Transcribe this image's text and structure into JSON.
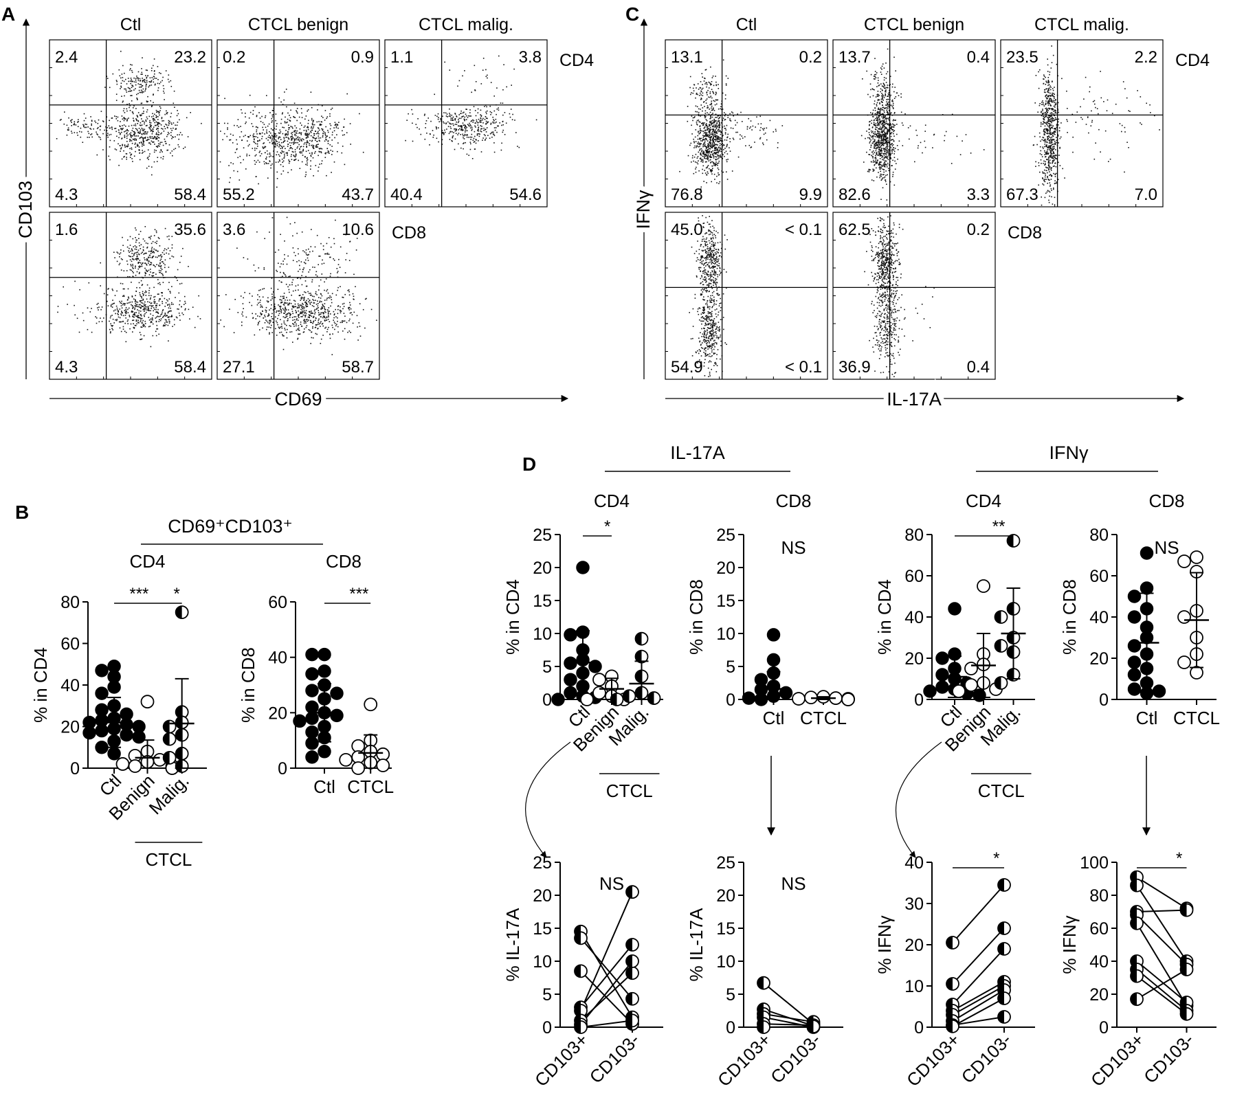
{
  "panels": {
    "A": {
      "letter": "A",
      "columns": [
        "Ctl",
        "CTCL benign",
        "CTCL malig."
      ],
      "row_labels": [
        "CD4",
        "CD8"
      ],
      "y_axis_label": "CD103",
      "x_axis_label": "CD69",
      "plots": [
        {
          "row": 0,
          "col": 0,
          "quadrants": [
            "2.4",
            "23.2",
            "4.3",
            "58.4"
          ]
        },
        {
          "row": 0,
          "col": 1,
          "quadrants": [
            "0.2",
            "0.9",
            "55.2",
            "43.7"
          ]
        },
        {
          "row": 0,
          "col": 2,
          "quadrants": [
            "1.1",
            "3.8",
            "40.4",
            "54.6"
          ]
        },
        {
          "row": 1,
          "col": 0,
          "quadrants": [
            "1.6",
            "35.6",
            "4.3",
            "58.4"
          ]
        },
        {
          "row": 1,
          "col": 1,
          "quadrants": [
            "3.6",
            "10.6",
            "27.1",
            "58.7"
          ]
        }
      ]
    },
    "C": {
      "letter": "C",
      "columns": [
        "Ctl",
        "CTCL benign",
        "CTCL malig."
      ],
      "row_labels": [
        "CD4",
        "CD8"
      ],
      "y_axis_label": "IFNγ",
      "x_axis_label": "IL-17A",
      "plots": [
        {
          "row": 0,
          "col": 0,
          "quadrants": [
            "13.1",
            "0.2",
            "76.8",
            "9.9"
          ]
        },
        {
          "row": 0,
          "col": 1,
          "quadrants": [
            "13.7",
            "0.4",
            "82.6",
            "3.3"
          ]
        },
        {
          "row": 0,
          "col": 2,
          "quadrants": [
            "23.5",
            "2.2",
            "67.3",
            "7.0"
          ]
        },
        {
          "row": 1,
          "col": 0,
          "quadrants": [
            "45.0",
            "< 0.1",
            "54.9",
            "< 0.1"
          ]
        },
        {
          "row": 1,
          "col": 1,
          "quadrants": [
            "62.5",
            "0.2",
            "36.9",
            "0.4"
          ]
        }
      ]
    },
    "B": {
      "letter": "B",
      "title": "CD69⁺CD103⁺",
      "group_label": "CTCL"
    },
    "D": {
      "letter": "D",
      "headers": [
        "IL-17A",
        "IFNγ"
      ],
      "group_label": "CTCL"
    }
  },
  "chart_data": [
    {
      "id": "B-CD4",
      "type": "scatter",
      "subtitle": "CD4",
      "ylabel": "% in CD4",
      "ylim": [
        0,
        80
      ],
      "yticks": [
        0,
        20,
        40,
        60,
        80
      ],
      "categories": [
        "Ctl",
        "Benign",
        "Malig."
      ],
      "series": [
        {
          "values": [
            49,
            47,
            44,
            39,
            36,
            30,
            28,
            26,
            24,
            23,
            22,
            21,
            20,
            19,
            18,
            17,
            16,
            15,
            13,
            10,
            7
          ],
          "mean": 22,
          "sd": 12,
          "marker": "filled"
        },
        {
          "values": [
            32,
            8,
            6,
            4,
            3,
            2,
            1,
            1,
            0,
            0
          ],
          "mean": 5,
          "sd": 8.5,
          "marker": "open"
        },
        {
          "values": [
            75,
            27,
            22,
            20,
            16,
            14,
            7,
            5,
            1
          ],
          "mean": 21.5,
          "sd": 21.5,
          "marker": "half"
        }
      ],
      "significance": [
        {
          "from": 0,
          "to": 1,
          "label": "***"
        },
        {
          "from": 1,
          "to": 2,
          "label": "*"
        }
      ]
    },
    {
      "id": "B-CD8",
      "type": "scatter",
      "subtitle": "CD8",
      "ylabel": "% in CD8",
      "ylim": [
        0,
        60
      ],
      "yticks": [
        0,
        20,
        40,
        60
      ],
      "categories": [
        "Ctl",
        "CTCL"
      ],
      "series": [
        {
          "values": [
            41,
            41,
            35,
            34,
            30,
            28,
            27,
            25,
            22,
            20,
            19,
            18,
            17,
            15,
            13,
            11,
            9,
            6,
            4
          ],
          "mean": 20,
          "sd": 10.5,
          "marker": "filled"
        },
        {
          "values": [
            23,
            10,
            8,
            6,
            5,
            4,
            3,
            2,
            1,
            0
          ],
          "mean": 5.5,
          "sd": 6.5,
          "marker": "open"
        }
      ],
      "significance": [
        {
          "from": 0,
          "to": 1,
          "label": "***"
        }
      ]
    },
    {
      "id": "D-IL17A-CD4",
      "type": "scatter",
      "subtitle": "CD4",
      "ylabel": "% in CD4",
      "ylim": [
        0,
        25
      ],
      "yticks": [
        0,
        5,
        10,
        15,
        20,
        25
      ],
      "categories": [
        "Ctl",
        "Benign",
        "Malig."
      ],
      "series": [
        {
          "values": [
            20,
            10.2,
            9.8,
            7.5,
            6,
            5.5,
            5,
            4,
            3,
            2,
            1,
            0.5,
            0.3,
            0
          ],
          "mean": 5.6,
          "sd": 4.8,
          "marker": "filled"
        },
        {
          "values": [
            3.5,
            3,
            2,
            1,
            0.5,
            0,
            0
          ],
          "mean": 1.6,
          "sd": 1.6,
          "marker": "open"
        },
        {
          "values": [
            9.2,
            6.5,
            3.5,
            1,
            0.5,
            0.2,
            0
          ],
          "mean": 2.4,
          "sd": 3.4,
          "marker": "half"
        }
      ],
      "significance": [
        {
          "from": 0,
          "to": 1,
          "label": "*"
        }
      ]
    },
    {
      "id": "D-IL17A-CD8",
      "type": "scatter",
      "subtitle": "CD8",
      "ylabel": "% in CD8",
      "ylim": [
        0,
        25
      ],
      "yticks": [
        0,
        5,
        10,
        15,
        20,
        25
      ],
      "categories": [
        "Ctl",
        "CTCL"
      ],
      "series": [
        {
          "values": [
            9.8,
            6,
            4,
            3,
            2,
            1.5,
            1,
            0.5,
            0.2,
            0
          ],
          "mean": 1.6,
          "sd": 2.6,
          "marker": "filled"
        },
        {
          "values": [
            0.4,
            0.3,
            0.2,
            0.1,
            0.1,
            0,
            0
          ],
          "mean": 0.2,
          "sd": 0.2,
          "marker": "open"
        }
      ],
      "annotation": "NS"
    },
    {
      "id": "D-IFNg-CD4",
      "type": "scatter",
      "subtitle": "CD4",
      "ylabel": "% in CD4",
      "ylim": [
        0,
        80
      ],
      "yticks": [
        0,
        20,
        40,
        60,
        80
      ],
      "categories": [
        "Ctl",
        "Benign",
        "Malig."
      ],
      "series": [
        {
          "values": [
            44,
            22,
            20,
            15,
            12,
            10,
            8,
            6,
            5,
            4,
            3,
            2
          ],
          "mean": 11,
          "sd": 10,
          "marker": "filled"
        },
        {
          "values": [
            55,
            22,
            17,
            15,
            8,
            7,
            5,
            4
          ],
          "mean": 16.5,
          "sd": 15.5,
          "marker": "open"
        },
        {
          "values": [
            77,
            44,
            40,
            30,
            26,
            23,
            12,
            8
          ],
          "mean": 32,
          "sd": 22,
          "marker": "half"
        }
      ],
      "significance": [
        {
          "from": 0,
          "to": 2,
          "label": "**"
        }
      ]
    },
    {
      "id": "D-IFNg-CD8",
      "type": "scatter",
      "subtitle": "CD8",
      "ylabel": "% in CD8",
      "ylim": [
        0,
        80
      ],
      "yticks": [
        0,
        20,
        40,
        60,
        80
      ],
      "categories": [
        "Ctl",
        "CTCL"
      ],
      "series": [
        {
          "values": [
            71,
            54,
            50,
            44,
            40,
            35,
            30,
            26,
            22,
            18,
            15,
            12,
            8,
            5,
            4,
            3
          ],
          "mean": 27.5,
          "sd": 24,
          "marker": "filled"
        },
        {
          "values": [
            69,
            67,
            62,
            43,
            40,
            30,
            22,
            18,
            13
          ],
          "mean": 38.5,
          "sd": 23,
          "marker": "open"
        }
      ],
      "annotation": "NS"
    },
    {
      "id": "D-IL17A-CD4-paired",
      "type": "line",
      "ylabel": "% IL-17A",
      "ylim": [
        0,
        25
      ],
      "yticks": [
        0,
        5,
        10,
        15,
        20,
        25
      ],
      "categories": [
        "CD103+",
        "CD103-"
      ],
      "pairs": [
        [
          14.5,
          1.5
        ],
        [
          13.5,
          4.3
        ],
        [
          8.5,
          0.5
        ],
        [
          3.0,
          12.5
        ],
        [
          2.5,
          20.5
        ],
        [
          1.0,
          8.2
        ],
        [
          0.4,
          10.0
        ],
        [
          0.0,
          1.0
        ]
      ],
      "annotation": "NS"
    },
    {
      "id": "D-IL17A-CD8-paired",
      "type": "line",
      "ylabel": "% IL-17A",
      "ylim": [
        0,
        25
      ],
      "yticks": [
        0,
        5,
        10,
        15,
        20,
        25
      ],
      "categories": [
        "CD103+",
        "CD103-"
      ],
      "pairs": [
        [
          6.7,
          0.5
        ],
        [
          2.7,
          0.2
        ],
        [
          2.0,
          0.8
        ],
        [
          1.5,
          0.0
        ],
        [
          0.5,
          0.3
        ],
        [
          0.0,
          0.1
        ]
      ],
      "annotation": "NS"
    },
    {
      "id": "D-IFNg-CD4-paired",
      "type": "line",
      "ylabel": "% IFNγ",
      "ylim": [
        0,
        40
      ],
      "yticks": [
        0,
        10,
        20,
        30,
        40
      ],
      "categories": [
        "CD103+",
        "CD103-"
      ],
      "pairs": [
        [
          20.5,
          34.5
        ],
        [
          10.5,
          24.0
        ],
        [
          5.5,
          19.0
        ],
        [
          4.0,
          11.0
        ],
        [
          3.0,
          10.0
        ],
        [
          1.5,
          9.0
        ],
        [
          0.5,
          2.5
        ],
        [
          0.2,
          7.0
        ]
      ],
      "significance": [
        {
          "from": 0,
          "to": 1,
          "label": "*"
        }
      ]
    },
    {
      "id": "D-IFNg-CD8-paired",
      "type": "line",
      "ylabel": "% IFNγ",
      "ylim": [
        0,
        100
      ],
      "yticks": [
        0,
        20,
        40,
        60,
        80,
        100
      ],
      "categories": [
        "CD103+",
        "CD103-"
      ],
      "pairs": [
        [
          91,
          72
        ],
        [
          86,
          40
        ],
        [
          70,
          71
        ],
        [
          68,
          38
        ],
        [
          63,
          13
        ],
        [
          40,
          15
        ],
        [
          35,
          10
        ],
        [
          31,
          8
        ],
        [
          17,
          35
        ]
      ],
      "significance": [
        {
          "from": 0,
          "to": 1,
          "label": "*"
        }
      ]
    }
  ]
}
